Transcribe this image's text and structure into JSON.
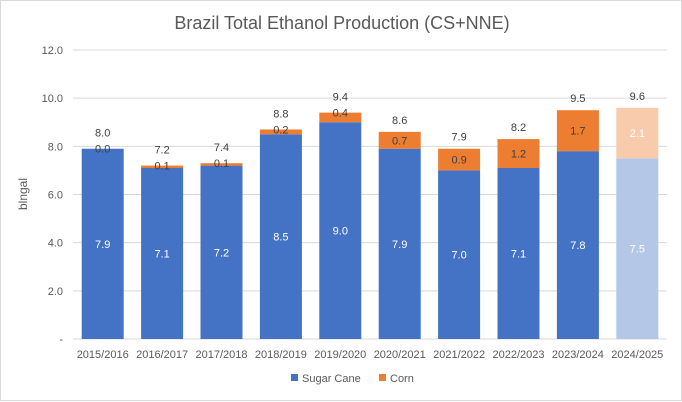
{
  "chart_data": {
    "type": "bar",
    "stacked": true,
    "title": "Brazil Total Ethanol Production (CS+NNE)",
    "xlabel": "",
    "ylabel": "blngal",
    "ylim": [
      0,
      12
    ],
    "yticks": [
      "-",
      "2.0",
      "4.0",
      "6.0",
      "8.0",
      "10.0",
      "12.0"
    ],
    "grid": true,
    "legend_position": "bottom",
    "categories": [
      "2015/2016",
      "2016/2017",
      "2017/2018",
      "2018/2019",
      "2019/2020",
      "2020/2021",
      "2021/2022",
      "2022/2023",
      "2023/2024",
      "2024/2025"
    ],
    "series": [
      {
        "name": "Sugar Cane",
        "color": "#4472c4",
        "projection_color": "#b4c7e7",
        "values": [
          7.9,
          7.1,
          7.2,
          8.5,
          9.0,
          7.9,
          7.0,
          7.1,
          7.8,
          7.5
        ],
        "labels": [
          "7.9",
          "7.1",
          "7.2",
          "8.5",
          "9.0",
          "7.9",
          "7.0",
          "7.1",
          "7.8",
          "7.5"
        ]
      },
      {
        "name": "Corn",
        "color": "#ed7d31",
        "projection_color": "#f8cbad",
        "values": [
          0.0,
          0.1,
          0.1,
          0.2,
          0.4,
          0.7,
          0.9,
          1.2,
          1.7,
          2.1
        ],
        "labels": [
          "0.0",
          "0.1",
          "0.1",
          "0.2",
          "0.4",
          "0.7",
          "0.9",
          "1.2",
          "1.7",
          "2.1"
        ]
      }
    ],
    "totals": [
      "8.0",
      "7.2",
      "7.4",
      "8.8",
      "9.4",
      "8.6",
      "7.9",
      "8.2",
      "9.5",
      "9.6"
    ],
    "projection_category": "2024/2025"
  }
}
